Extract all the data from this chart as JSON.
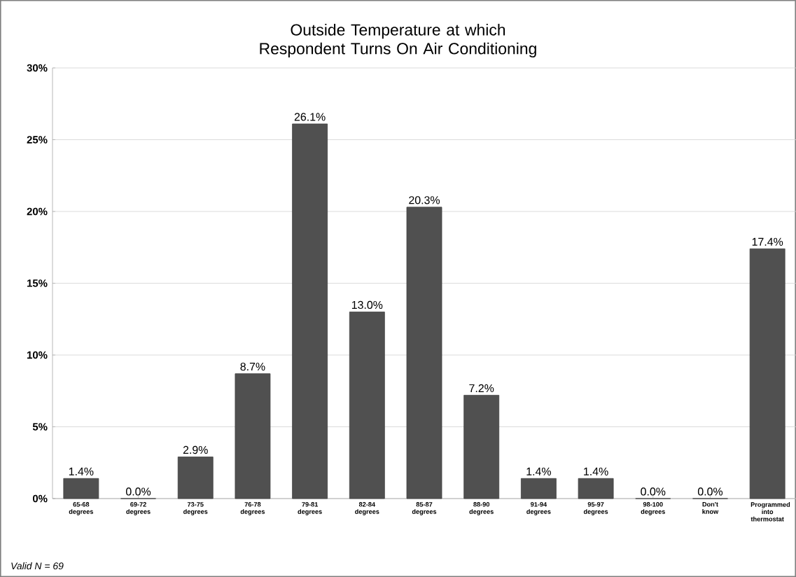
{
  "chart_data": {
    "type": "bar",
    "title": "Outside Temperature at which Respondent Turns On Air Conditioning",
    "categories": [
      "65-68 degrees",
      "69-72 degrees",
      "73-75 degrees",
      "76-78 degrees",
      "79-81 degrees",
      "82-84 degrees",
      "85-87 degrees",
      "88-90 degrees",
      "91-94 degrees",
      "95-97 degrees",
      "98-100 degrees",
      "Don't know",
      "Programmed into thermostat"
    ],
    "values": [
      1.4,
      0.0,
      2.9,
      8.7,
      26.1,
      13.0,
      20.3,
      7.2,
      1.4,
      1.4,
      0.0,
      0.0,
      17.4
    ],
    "value_labels": [
      "1.4%",
      "0.0%",
      "2.9%",
      "8.7%",
      "26.1%",
      "13.0%",
      "20.3%",
      "7.2%",
      "1.4%",
      "1.4%",
      "0.0%",
      "0.0%",
      "17.4%"
    ],
    "color": "#505050",
    "ylim": [
      0,
      30
    ],
    "yticks": [
      {
        "value": 0,
        "label": "0%"
      },
      {
        "value": 5,
        "label": "5%"
      },
      {
        "value": 10,
        "label": "10%"
      },
      {
        "value": 15,
        "label": "15%"
      },
      {
        "value": 20,
        "label": "20%"
      },
      {
        "value": 25,
        "label": "25%"
      },
      {
        "value": 30,
        "label": "30%"
      }
    ],
    "grid": "y",
    "annotations": [
      "Valid N = 69"
    ]
  }
}
